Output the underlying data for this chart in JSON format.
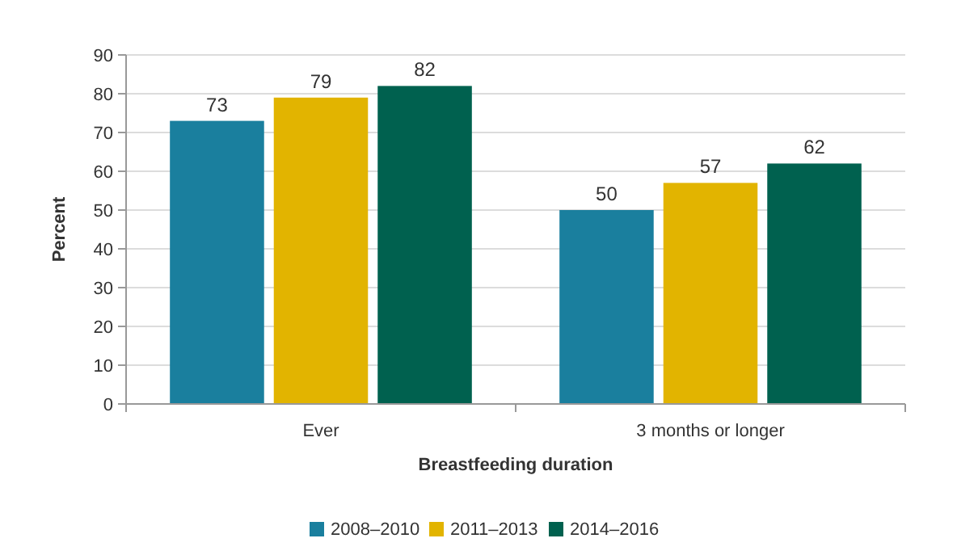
{
  "chart_data": {
    "type": "bar",
    "xlabel": "Breastfeeding duration",
    "ylabel": "Percent",
    "categories": [
      "Ever",
      "3 months or longer"
    ],
    "series": [
      {
        "name": "2008–2010",
        "color": "#1a7f9e",
        "values": [
          73,
          50
        ]
      },
      {
        "name": "2011–2013",
        "color": "#e2b400",
        "values": [
          79,
          57
        ]
      },
      {
        "name": "2014–2016",
        "color": "#00614f",
        "values": [
          82,
          62
        ]
      }
    ],
    "ylim": [
      0,
      90
    ],
    "yticks": [
      0,
      10,
      20,
      30,
      40,
      50,
      60,
      70,
      80,
      90
    ],
    "grid": "y",
    "legend": "bottom",
    "data_labels": true
  }
}
